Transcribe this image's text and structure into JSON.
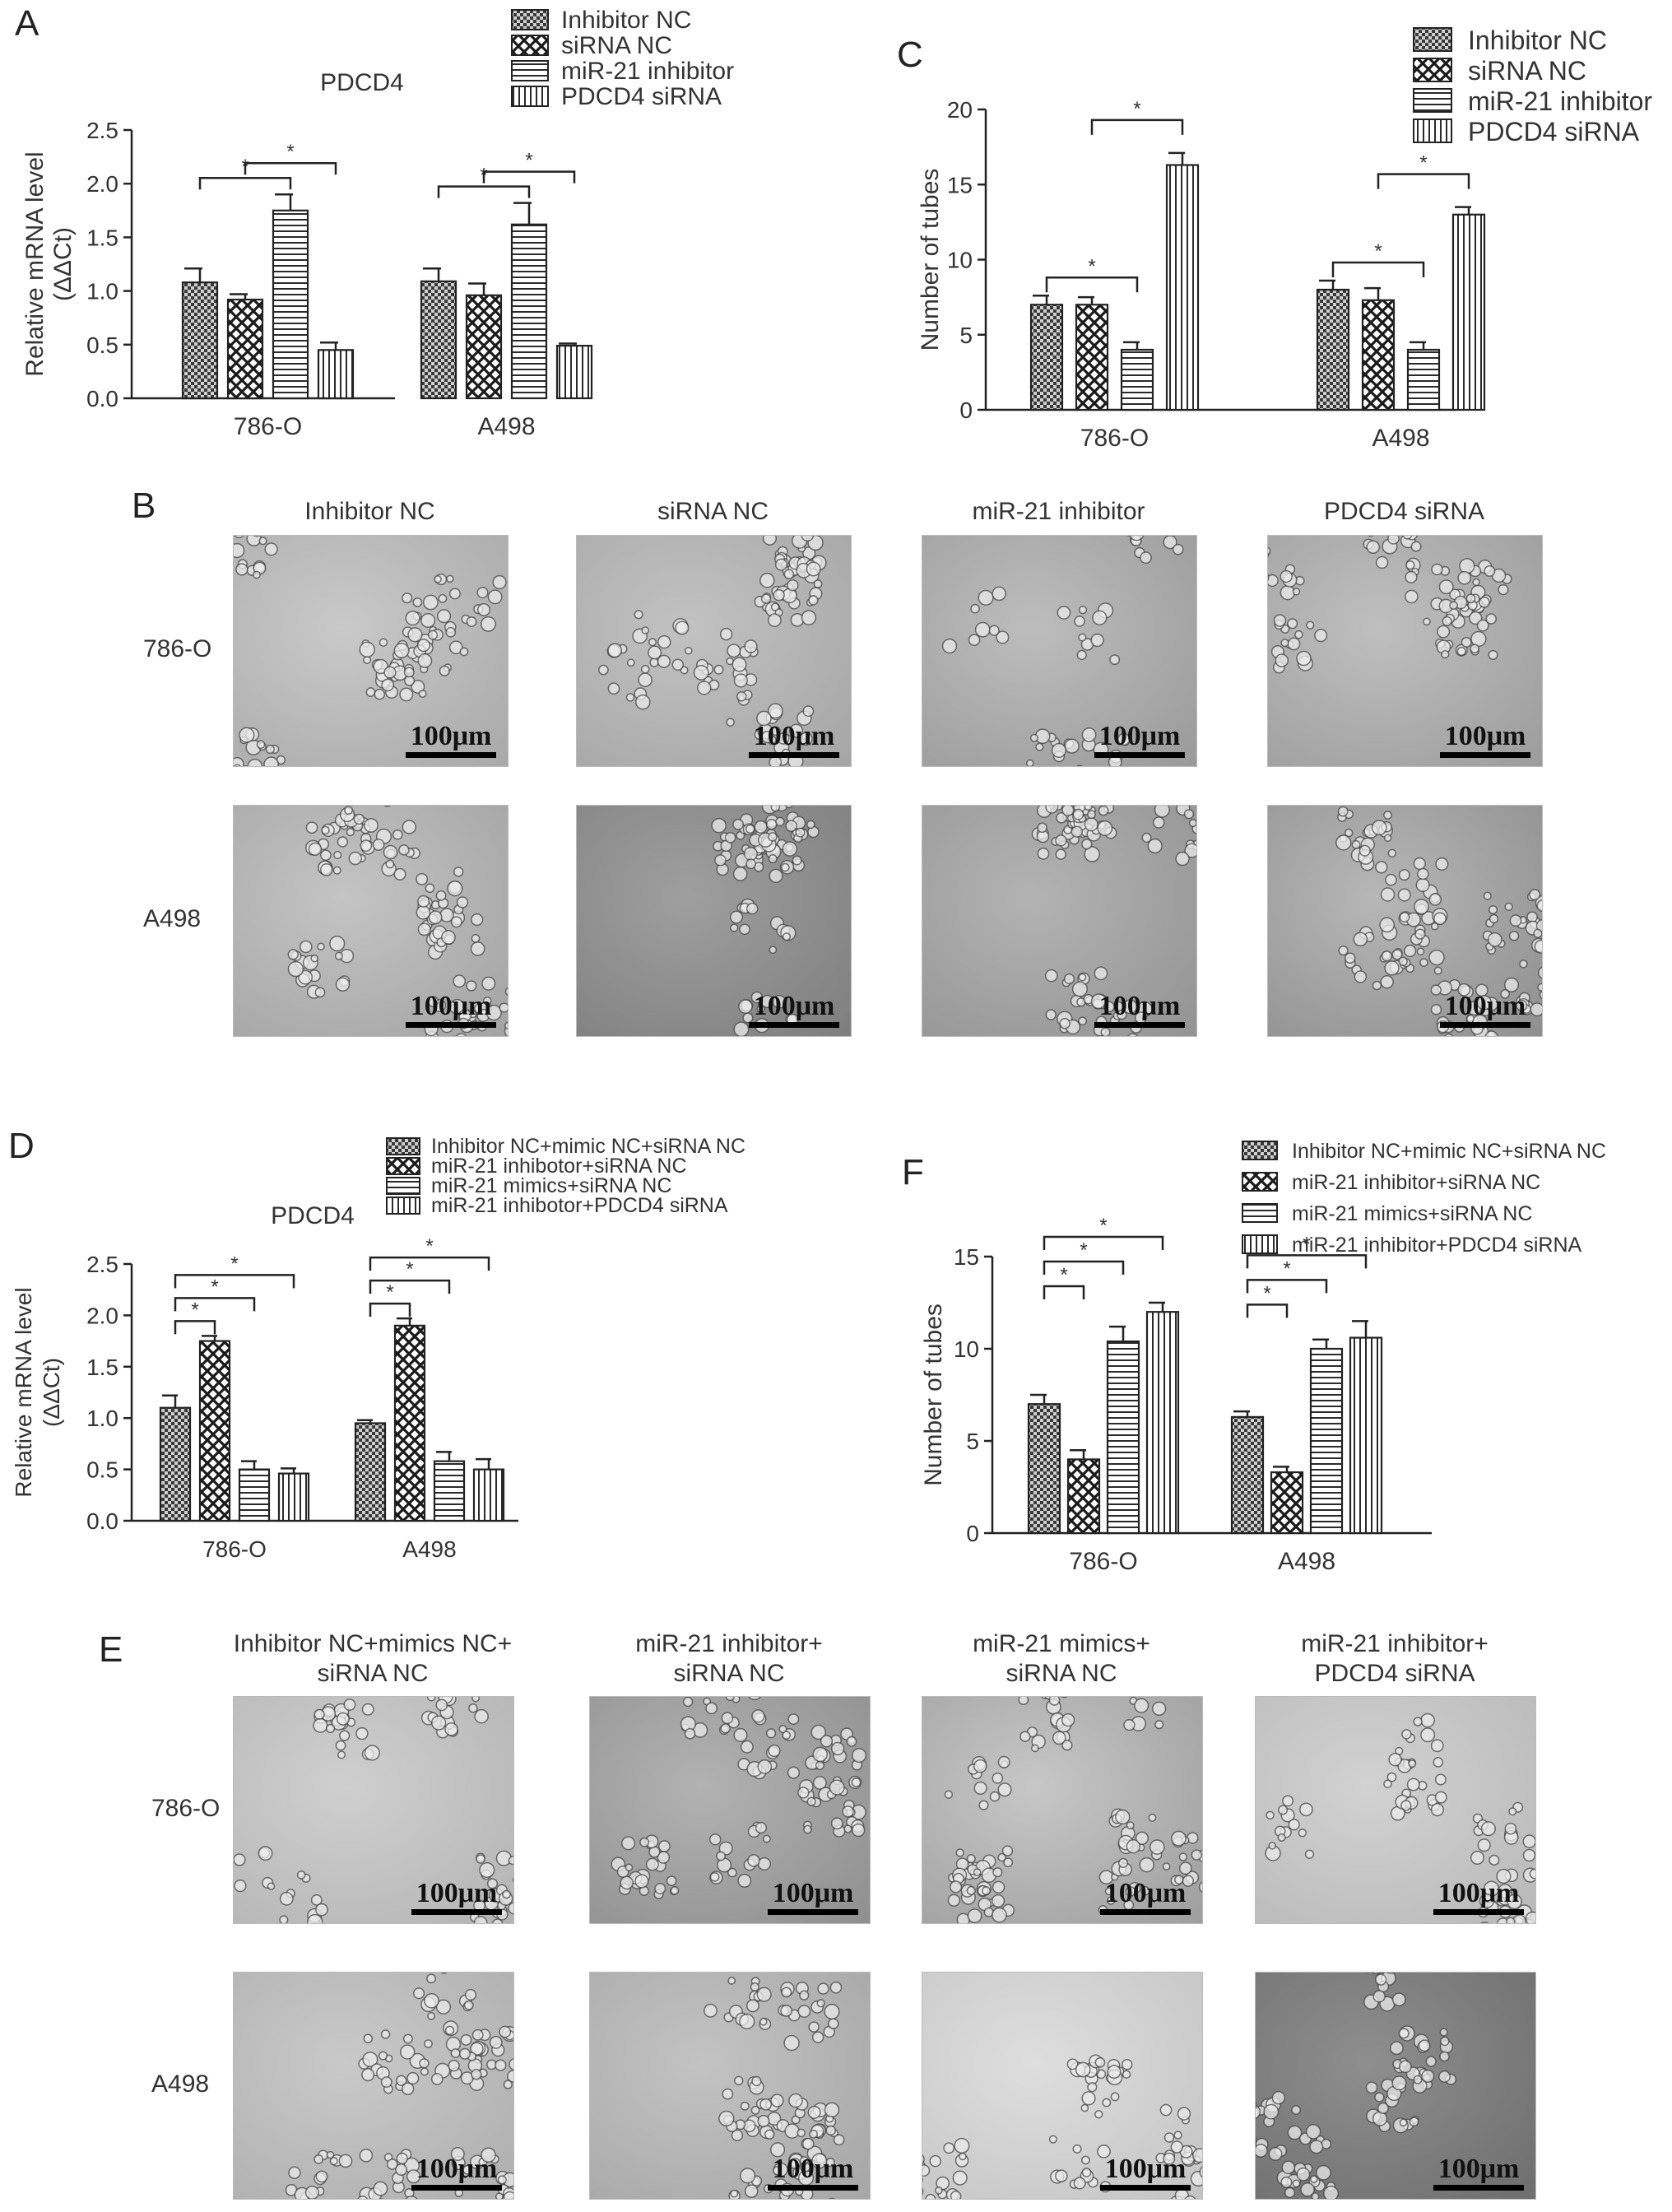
{
  "panel_letters": {
    "A": "A",
    "B": "B",
    "C": "C",
    "D": "D",
    "E": "E",
    "F": "F"
  },
  "colors": {
    "bar_edge": "#222222",
    "axis": "#222222",
    "text": "#222222",
    "image_bg_light": "#b8b8b8",
    "image_bg_dark": "#8c8c8c"
  },
  "chart_data": [
    {
      "id": "A",
      "type": "bar",
      "title": "PDCD4",
      "ylabel": "Relative mRNA level\n(ΔΔCt)",
      "xlabel": "",
      "categories": [
        "786-O",
        "A498"
      ],
      "ylim": [
        0,
        2.5
      ],
      "yticks": [
        "0.0",
        "0.5",
        "1.0",
        "1.5",
        "2.0",
        "2.5"
      ],
      "series": [
        {
          "name": "Inhibitor NC",
          "pattern": "checker",
          "values": [
            1.08,
            1.09
          ],
          "errors": [
            0.13,
            0.12
          ]
        },
        {
          "name": "siRNA NC",
          "pattern": "cross",
          "values": [
            0.92,
            0.96
          ],
          "errors": [
            0.05,
            0.11
          ]
        },
        {
          "name": "miR-21 inhibitor",
          "pattern": "hlines",
          "values": [
            1.75,
            1.62
          ],
          "errors": [
            0.15,
            0.2
          ]
        },
        {
          "name": "PDCD4 siRNA",
          "pattern": "vlines",
          "values": [
            0.45,
            0.49
          ],
          "errors": [
            0.07,
            0.02
          ]
        }
      ],
      "significance": [
        {
          "category": 0,
          "from": 0,
          "to": 2,
          "label": "*"
        },
        {
          "category": 0,
          "from": 1,
          "to": 3,
          "label": "*"
        },
        {
          "category": 1,
          "from": 0,
          "to": 2,
          "label": "*"
        },
        {
          "category": 1,
          "from": 1,
          "to": 3,
          "label": "*"
        }
      ],
      "legend": "top"
    },
    {
      "id": "C",
      "type": "bar",
      "title": "",
      "ylabel": "Number of tubes",
      "xlabel": "",
      "categories": [
        "786-O",
        "A498"
      ],
      "ylim": [
        0,
        20
      ],
      "yticks": [
        "0",
        "5",
        "10",
        "15",
        "20"
      ],
      "series": [
        {
          "name": "Inhibitor NC",
          "pattern": "checker",
          "values": [
            7.0,
            8.0
          ],
          "errors": [
            0.6,
            0.6
          ]
        },
        {
          "name": "siRNA NC",
          "pattern": "cross",
          "values": [
            7.0,
            7.3
          ],
          "errors": [
            0.5,
            0.8
          ]
        },
        {
          "name": "miR-21 inhibitor",
          "pattern": "hlines",
          "values": [
            4.0,
            4.0
          ],
          "errors": [
            0.5,
            0.5
          ]
        },
        {
          "name": "PDCD4 siRNA",
          "pattern": "vlines",
          "values": [
            16.3,
            13.0
          ],
          "errors": [
            0.8,
            0.5
          ]
        }
      ],
      "significance": [
        {
          "category": 0,
          "from": 0,
          "to": 2,
          "label": "*"
        },
        {
          "category": 0,
          "from": 1,
          "to": 3,
          "label": "*"
        },
        {
          "category": 1,
          "from": 0,
          "to": 2,
          "label": "*"
        },
        {
          "category": 1,
          "from": 1,
          "to": 3,
          "label": "*"
        }
      ],
      "legend": "top-right"
    },
    {
      "id": "D",
      "type": "bar",
      "title": "PDCD4",
      "ylabel": "Relative mRNA level\n(ΔΔCt)",
      "xlabel": "",
      "categories": [
        "786-O",
        "A498"
      ],
      "ylim": [
        0,
        2.5
      ],
      "yticks": [
        "0.0",
        "0.5",
        "1.0",
        "1.5",
        "2.0",
        "2.5"
      ],
      "series": [
        {
          "name": "Inhibitor NC+mimic NC+siRNA NC",
          "pattern": "checker",
          "values": [
            1.1,
            0.95
          ],
          "errors": [
            0.12,
            0.03
          ]
        },
        {
          "name": "miR-21 inhibotor+siRNA NC",
          "pattern": "cross",
          "values": [
            1.75,
            1.9
          ],
          "errors": [
            0.05,
            0.07
          ]
        },
        {
          "name": "miR-21 mimics+siRNA NC",
          "pattern": "hlines",
          "values": [
            0.5,
            0.58
          ],
          "errors": [
            0.08,
            0.09
          ]
        },
        {
          "name": "miR-21 inhibotor+PDCD4 siRNA",
          "pattern": "vlines",
          "values": [
            0.46,
            0.5
          ],
          "errors": [
            0.05,
            0.1
          ]
        }
      ],
      "significance": [
        {
          "category": 0,
          "from": 0,
          "to": 1,
          "label": "*"
        },
        {
          "category": 0,
          "from": 0,
          "to": 2,
          "label": "*"
        },
        {
          "category": 0,
          "from": 0,
          "to": 3,
          "label": "*"
        },
        {
          "category": 1,
          "from": 0,
          "to": 1,
          "label": "*"
        },
        {
          "category": 1,
          "from": 0,
          "to": 2,
          "label": "*"
        },
        {
          "category": 1,
          "from": 0,
          "to": 3,
          "label": "*"
        }
      ],
      "legend": "top"
    },
    {
      "id": "F",
      "type": "bar",
      "title": "",
      "ylabel": "Number of tubes",
      "xlabel": "",
      "categories": [
        "786-O",
        "A498"
      ],
      "ylim": [
        0,
        15
      ],
      "yticks": [
        "0",
        "5",
        "10",
        "15"
      ],
      "series": [
        {
          "name": "Inhibitor NC+mimic NC+siRNA NC",
          "pattern": "checker",
          "values": [
            7.0,
            6.3
          ],
          "errors": [
            0.5,
            0.3
          ]
        },
        {
          "name": "miR-21 inhibitor+siRNA NC",
          "pattern": "cross",
          "values": [
            4.0,
            3.3
          ],
          "errors": [
            0.5,
            0.3
          ]
        },
        {
          "name": "miR-21 mimics+siRNA NC",
          "pattern": "hlines",
          "values": [
            10.4,
            10.0
          ],
          "errors": [
            0.8,
            0.5
          ]
        },
        {
          "name": "miR-21 inhibitor+PDCD4 siRNA",
          "pattern": "vlines",
          "values": [
            12.0,
            10.6
          ],
          "errors": [
            0.5,
            0.9
          ]
        }
      ],
      "significance": [
        {
          "category": 0,
          "from": 0,
          "to": 1,
          "label": "*"
        },
        {
          "category": 0,
          "from": 0,
          "to": 2,
          "label": "*"
        },
        {
          "category": 0,
          "from": 0,
          "to": 3,
          "label": "*"
        },
        {
          "category": 1,
          "from": 0,
          "to": 1,
          "label": "*"
        },
        {
          "category": 1,
          "from": 0,
          "to": 2,
          "label": "*"
        },
        {
          "category": 1,
          "from": 0,
          "to": 3,
          "label": "*"
        }
      ],
      "legend": "top-right"
    }
  ],
  "panel_B": {
    "columns": [
      "Inhibitor NC",
      "siRNA NC",
      "miR-21 inhibitor",
      "PDCD4 siRNA"
    ],
    "rows": [
      "786-O",
      "A498"
    ],
    "scale_bar": "100μm"
  },
  "panel_E": {
    "columns": [
      "Inhibitor NC+mimics NC+\nsiRNA NC",
      "miR-21 inhibitor+\nsiRNA NC",
      "miR-21 mimics+\nsiRNA NC",
      "miR-21 inhibitor+\nPDCD4 siRNA"
    ],
    "rows": [
      "786-O",
      "A498"
    ],
    "scale_bar": "100μm"
  }
}
